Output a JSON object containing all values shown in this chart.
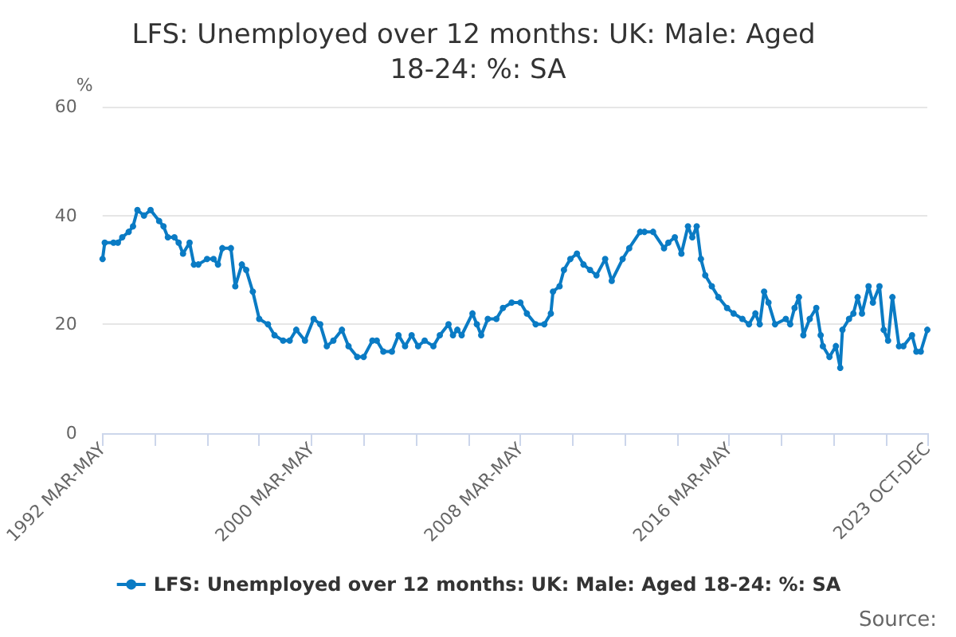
{
  "chart_data": {
    "type": "line",
    "title": "LFS: Unemployed over 12 months: UK: Male: Aged 18-24: %: SA",
    "ylabel": "%",
    "x": [
      "1992-04",
      "1992-05",
      "1992-09",
      "1992-11",
      "1993-01",
      "1993-04",
      "1993-06",
      "1993-08",
      "1993-11",
      "1994-02",
      "1994-06",
      "1994-08",
      "1994-10",
      "1995-01",
      "1995-03",
      "1995-05",
      "1995-08",
      "1995-10",
      "1995-12",
      "1996-04",
      "1996-07",
      "1996-09",
      "1996-11",
      "1997-03",
      "1997-05",
      "1997-08",
      "1997-10",
      "1998-01",
      "1998-04",
      "1998-08",
      "1998-11",
      "1999-03",
      "1999-06",
      "1999-09",
      "2000-01",
      "2000-05",
      "2000-08",
      "2000-11",
      "2001-02",
      "2001-06",
      "2001-09",
      "2002-01",
      "2002-04",
      "2002-08",
      "2002-10",
      "2003-01",
      "2003-05",
      "2003-08",
      "2003-11",
      "2004-02",
      "2004-05",
      "2004-08",
      "2004-12",
      "2005-03",
      "2005-07",
      "2005-09",
      "2005-11",
      "2006-01",
      "2006-06",
      "2006-08",
      "2006-10",
      "2007-01",
      "2007-05",
      "2007-08",
      "2007-12",
      "2008-04",
      "2008-07",
      "2008-11",
      "2009-03",
      "2009-06",
      "2009-07",
      "2009-10",
      "2009-12",
      "2010-03",
      "2010-06",
      "2010-09",
      "2010-12",
      "2011-03",
      "2011-07",
      "2011-10",
      "2012-03",
      "2012-06",
      "2012-11",
      "2013-01",
      "2013-05",
      "2013-10",
      "2013-12",
      "2014-03",
      "2014-06",
      "2014-09",
      "2014-11",
      "2015-01",
      "2015-03",
      "2015-05",
      "2015-08",
      "2015-11",
      "2016-03",
      "2016-06",
      "2016-10",
      "2017-01",
      "2017-04",
      "2017-06",
      "2017-08",
      "2017-10",
      "2018-01",
      "2018-06",
      "2018-08",
      "2018-10",
      "2018-12",
      "2019-02",
      "2019-05",
      "2019-08",
      "2019-10",
      "2019-11",
      "2020-02",
      "2020-05",
      "2020-07",
      "2020-08",
      "2020-11",
      "2021-01",
      "2021-03",
      "2021-05",
      "2021-08",
      "2021-10",
      "2022-01",
      "2022-03",
      "2022-05",
      "2022-07",
      "2022-10",
      "2022-12",
      "2023-04",
      "2023-06",
      "2023-08",
      "2023-11"
    ],
    "series": [
      {
        "name": "LFS: Unemployed over 12 months: UK: Male: Aged 18-24: %: SA",
        "color": "#0a7bc4",
        "values": [
          32,
          35,
          35,
          35,
          36,
          37,
          38,
          41,
          40,
          41,
          39,
          38,
          36,
          36,
          35,
          33,
          35,
          31,
          31,
          32,
          32,
          31,
          34,
          34,
          27,
          31,
          30,
          26,
          21,
          20,
          18,
          17,
          17,
          19,
          17,
          21,
          20,
          16,
          17,
          19,
          16,
          14,
          14,
          17,
          17,
          15,
          15,
          18,
          16,
          18,
          16,
          17,
          16,
          18,
          20,
          18,
          19,
          18,
          22,
          20,
          18,
          21,
          21,
          23,
          24,
          24,
          22,
          20,
          20,
          22,
          26,
          27,
          30,
          32,
          33,
          31,
          30,
          29,
          32,
          28,
          32,
          34,
          37,
          37,
          37,
          34,
          35,
          36,
          33,
          38,
          36,
          38,
          32,
          29,
          27,
          25,
          23,
          22,
          21,
          20,
          22,
          20,
          26,
          24,
          20,
          21,
          20,
          23,
          25,
          18,
          21,
          23,
          18,
          16,
          14,
          16,
          12,
          19,
          21,
          22,
          25,
          22,
          27,
          24,
          27,
          19,
          17,
          25,
          16,
          16,
          18,
          15,
          15,
          19
        ]
      }
    ],
    "marker": "circle",
    "line_style": "solid",
    "xlim": [
      "1992-04",
      "2023-11"
    ],
    "xticks": [
      {
        "value": "1992-04",
        "label": "1992 MAR-MAY"
      },
      {
        "value": "1994-04",
        "label": null
      },
      {
        "value": "1996-04",
        "label": null
      },
      {
        "value": "1998-04",
        "label": null
      },
      {
        "value": "2000-04",
        "label": "2000 MAR-MAY"
      },
      {
        "value": "2002-04",
        "label": null
      },
      {
        "value": "2004-04",
        "label": null
      },
      {
        "value": "2006-04",
        "label": null
      },
      {
        "value": "2008-04",
        "label": "2008 MAR-MAY"
      },
      {
        "value": "2010-04",
        "label": null
      },
      {
        "value": "2012-04",
        "label": null
      },
      {
        "value": "2014-04",
        "label": null
      },
      {
        "value": "2016-04",
        "label": "2016 MAR-MAY"
      },
      {
        "value": "2018-04",
        "label": null
      },
      {
        "value": "2020-04",
        "label": null
      },
      {
        "value": "2022-04",
        "label": null
      },
      {
        "value": "2023-11",
        "label": "2023 OCT-DEC"
      }
    ],
    "ylim": [
      0,
      60
    ],
    "yticks": [
      0,
      20,
      40,
      60
    ],
    "grid": "y",
    "legend": "bottom",
    "annotations": [
      "Source:"
    ]
  }
}
